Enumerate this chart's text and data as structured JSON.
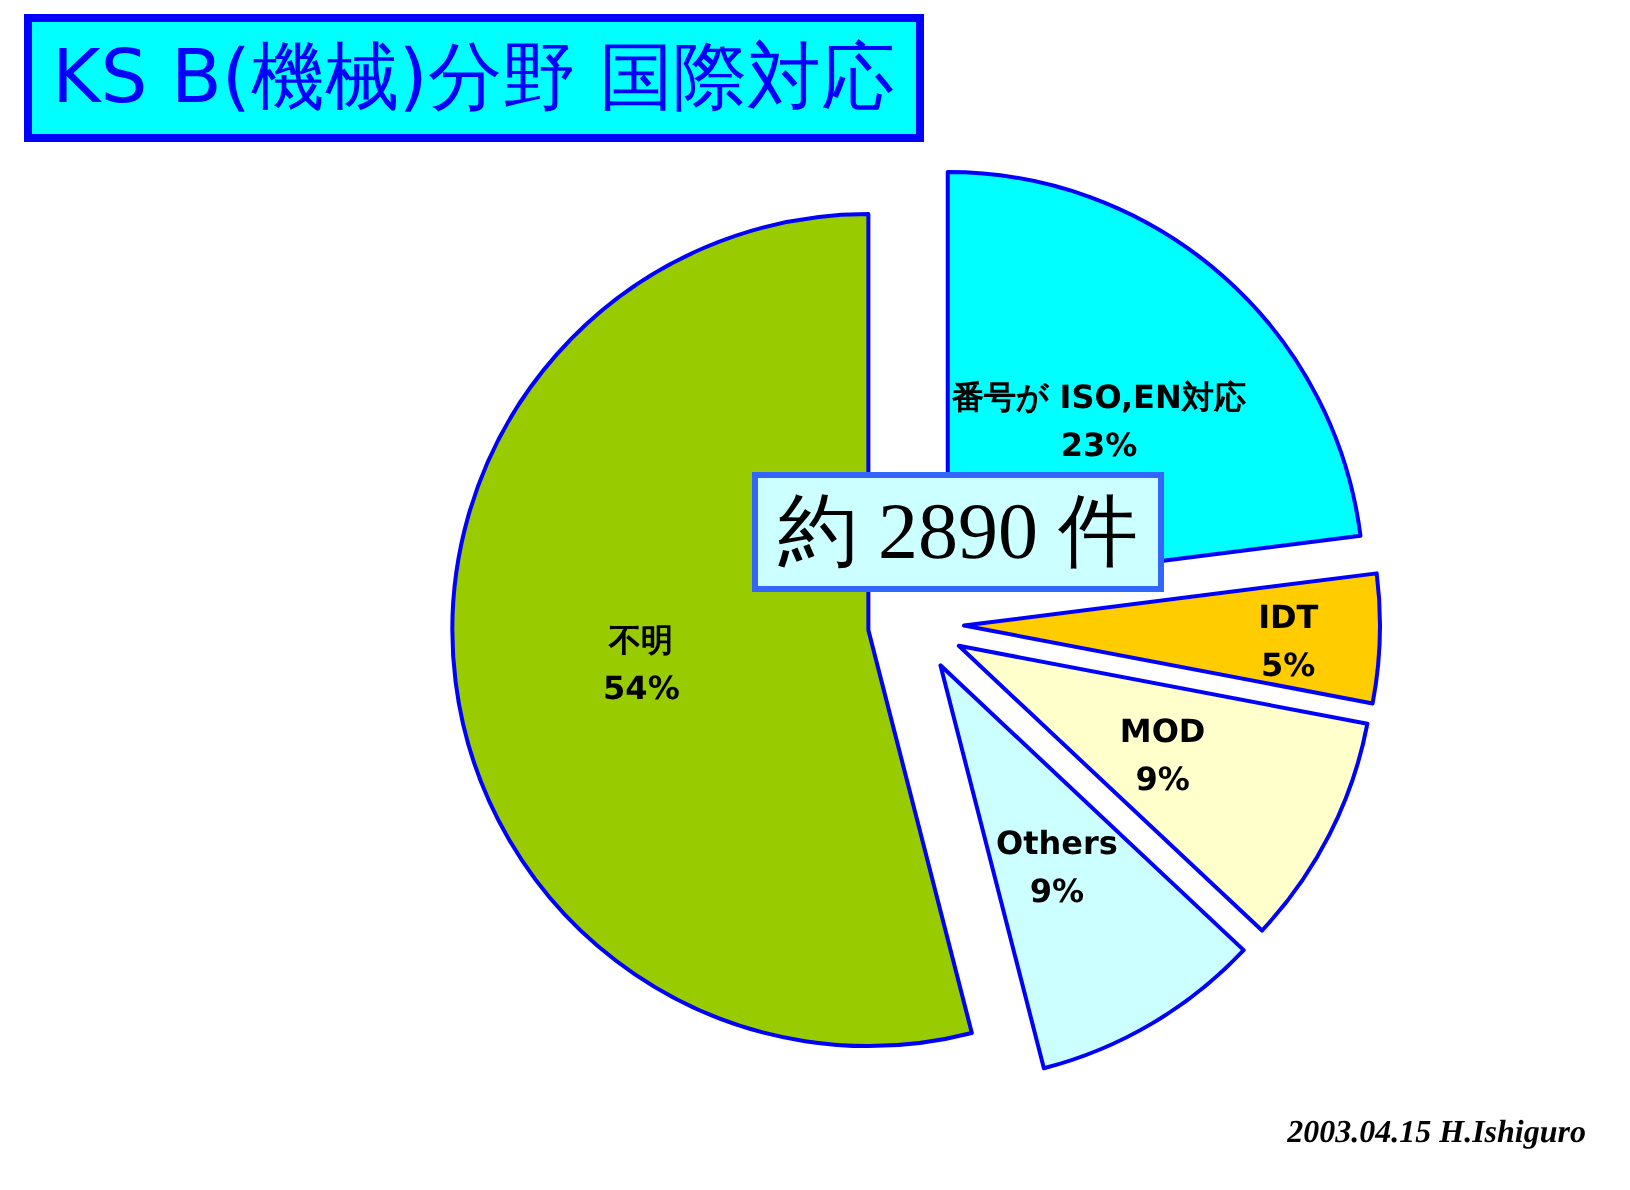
{
  "chart_data": {
    "type": "pie",
    "title": "KS B(機械)分野 国際対応",
    "categories": [
      "番号が ISO,EN対応",
      "IDT",
      "MOD",
      "Others",
      "不明"
    ],
    "values": [
      23,
      5,
      9,
      9,
      54
    ],
    "colors": [
      "#00ffff",
      "#ffcc00",
      "#ffffcc",
      "#ccffff",
      "#99cc00"
    ],
    "value_labels": [
      "23%",
      "5%",
      "9%",
      "9%",
      "54%"
    ],
    "annotations": [
      "約 2890 件",
      "2003.04.15 H.Ishiguro"
    ]
  }
}
